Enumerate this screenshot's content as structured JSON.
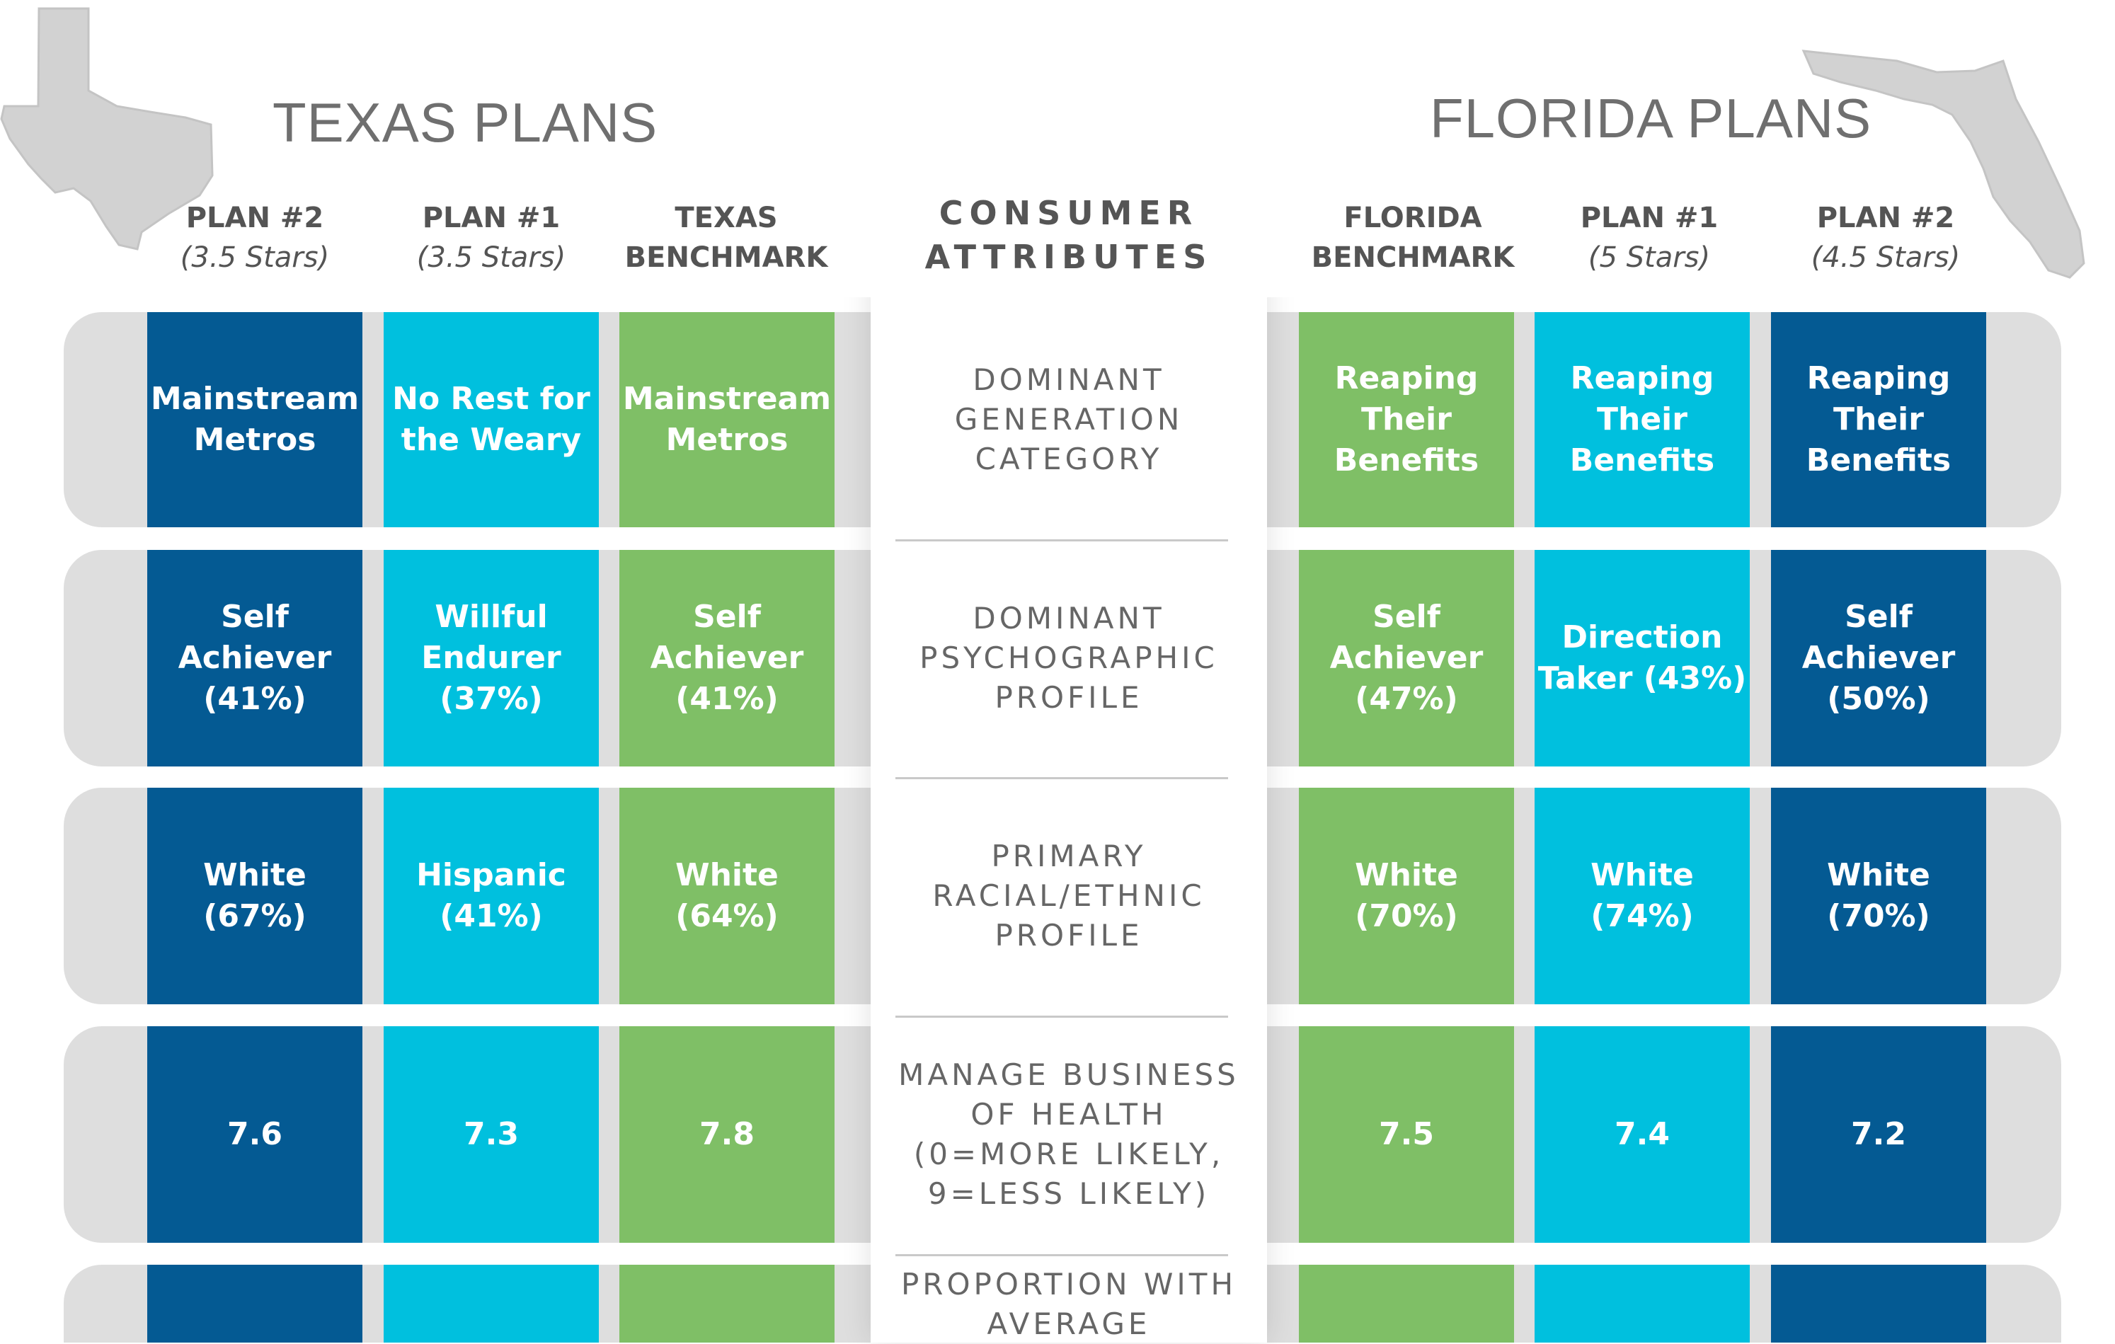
{
  "colors": {
    "dark_blue": "#045a93",
    "cyan": "#00c0de",
    "green": "#7fbf66",
    "row_gray": "#dedede"
  },
  "texas": {
    "title": "TEXAS PLANS",
    "columns": [
      {
        "name": "PLAN #2",
        "sub": "(3.5 Stars)"
      },
      {
        "name": "PLAN #1",
        "sub": "(3.5 Stars)"
      },
      {
        "name": "TEXAS",
        "sub": "BENCHMARK"
      }
    ]
  },
  "florida": {
    "title": "FLORIDA PLANS",
    "columns": [
      {
        "name": "FLORIDA",
        "sub": "BENCHMARK"
      },
      {
        "name": "PLAN #1",
        "sub": "(5 Stars)"
      },
      {
        "name": "PLAN #2",
        "sub": "(4.5 Stars)"
      }
    ]
  },
  "attributes_header": "CONSUMER\nATTRIBUTES",
  "rows": [
    {
      "attribute": "DOMINANT\nGENERATION\nCATEGORY",
      "texas": [
        "Mainstream\nMetros",
        "No Rest for\nthe Weary",
        "Mainstream\nMetros"
      ],
      "florida": [
        "Reaping\nTheir\nBenefits",
        "Reaping\nTheir\nBenefits",
        "Reaping\nTheir\nBenefits"
      ]
    },
    {
      "attribute": "DOMINANT\nPSYCHOGRAPHIC\nPROFILE",
      "texas": [
        "Self\nAchiever\n(41%)",
        "Willful\nEndurer\n(37%)",
        "Self\nAchiever\n(41%)"
      ],
      "florida": [
        "Self\nAchiever\n(47%)",
        "Direction\nTaker (43%)",
        "Self\nAchiever\n(50%)"
      ]
    },
    {
      "attribute": "PRIMARY\nRACIAL/ETHNIC\nPROFILE",
      "texas": [
        "White (67%)",
        "Hispanic\n(41%)",
        "White (64%)"
      ],
      "florida": [
        "White (70%)",
        "White (74%)",
        "White (70%)"
      ]
    },
    {
      "attribute": "MANAGE BUSINESS\nOF HEALTH\n(0=MORE LIKELY,\n9=LESS LIKELY)",
      "texas": [
        "7.6",
        "7.3",
        "7.8"
      ],
      "florida": [
        "7.5",
        "7.4",
        "7.2"
      ]
    },
    {
      "attribute": "PROPORTION WITH\nAVERAGE",
      "texas": [
        "",
        "",
        ""
      ],
      "florida": [
        "",
        "",
        ""
      ]
    }
  ]
}
